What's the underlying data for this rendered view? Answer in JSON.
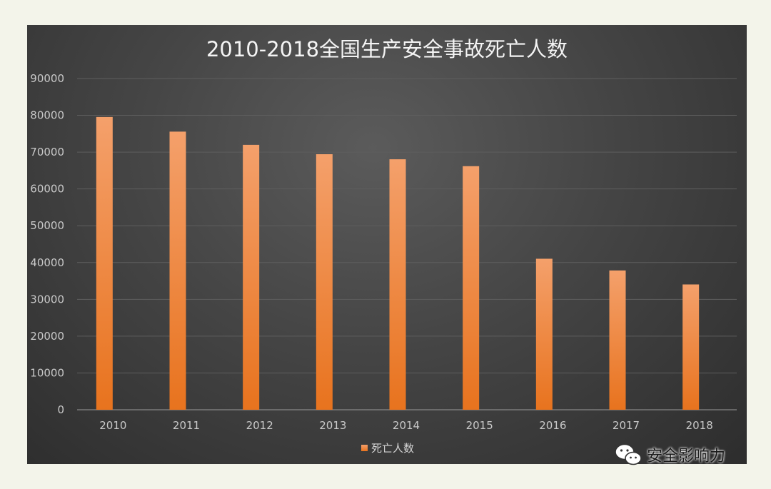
{
  "chart_data": {
    "type": "bar",
    "title": "2010-2018全国生产安全事故死亡人数",
    "categories": [
      "2010",
      "2011",
      "2012",
      "2013",
      "2014",
      "2015",
      "2016",
      "2017",
      "2018"
    ],
    "series": [
      {
        "name": "死亡人数",
        "values": [
          79552,
          75572,
          71983,
          69434,
          68061,
          66182,
          41033,
          37852,
          34046
        ]
      }
    ],
    "ylim": [
      0,
      90000
    ],
    "yticks": [
      0,
      10000,
      20000,
      30000,
      40000,
      50000,
      60000,
      70000,
      80000,
      90000
    ],
    "grid": true,
    "legend_position": "bottom",
    "colors": {
      "bar_top": "#f4a06b",
      "bar_bottom": "#e8731e",
      "background": "#3c3c3c"
    }
  },
  "watermark": {
    "text": "安全影响力",
    "icon": "wechat-icon"
  }
}
